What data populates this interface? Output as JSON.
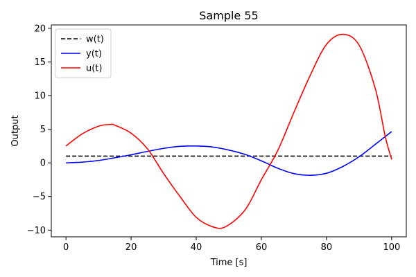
{
  "chart_data": {
    "type": "line",
    "title": "Sample 55",
    "xlabel": "Time [s]",
    "ylabel": "Output",
    "xlim": [
      -4.5,
      104.5
    ],
    "ylim": [
      -11,
      20.5
    ],
    "xticks": [
      0,
      20,
      40,
      60,
      80,
      100
    ],
    "yticks": [
      -10,
      -5,
      0,
      5,
      10,
      15,
      20
    ],
    "ytick_labels": [
      "−10",
      "−5",
      "0",
      "5",
      "10",
      "15",
      "20"
    ],
    "grid": false,
    "legend_position": "top-left",
    "series": [
      {
        "name": "w(t)",
        "color": "#000000",
        "dash": "dashed",
        "x": [
          0,
          100
        ],
        "y": [
          1,
          1
        ]
      },
      {
        "name": "y(t)",
        "color": "#0000ff",
        "dash": "solid",
        "x": [
          0,
          5,
          10,
          15,
          20,
          25,
          30,
          35,
          40,
          45,
          50,
          55,
          60,
          65,
          70,
          75,
          80,
          85,
          90,
          95,
          100
        ],
        "y": [
          0.0,
          0.1,
          0.35,
          0.75,
          1.2,
          1.7,
          2.15,
          2.45,
          2.5,
          2.35,
          1.9,
          1.25,
          0.3,
          -0.8,
          -1.6,
          -1.85,
          -1.55,
          -0.55,
          0.9,
          2.75,
          4.65
        ]
      },
      {
        "name": "u(t)",
        "color": "#ff0000",
        "dash": "solid",
        "x": [
          0,
          5,
          10,
          13.5,
          15,
          20,
          25,
          30,
          35,
          40,
          45,
          49,
          55,
          60,
          65,
          70,
          75,
          80,
          85,
          90,
          95,
          98,
          100
        ],
        "y": [
          2.5,
          4.3,
          5.45,
          5.7,
          5.6,
          4.4,
          2.1,
          -1.6,
          -5.0,
          -8.1,
          -9.5,
          -9.5,
          -7.0,
          -2.5,
          1.8,
          7.5,
          13.0,
          17.6,
          19.1,
          17.5,
          11.0,
          4.0,
          0.5
        ]
      }
    ]
  }
}
